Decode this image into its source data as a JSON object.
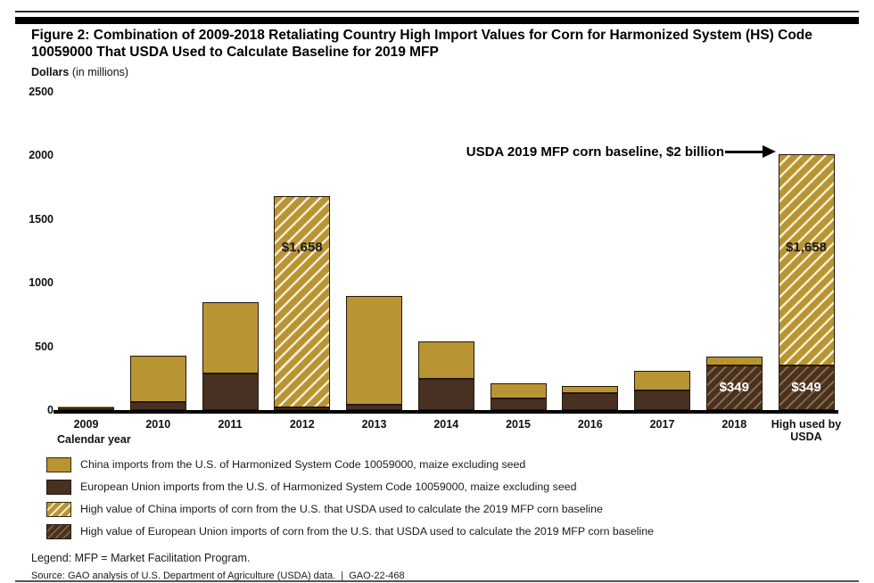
{
  "header": {
    "title_lines": [
      "Figure 2: Combination of 2009-2018 Retaliating Country High Import Values for Corn for Harmonized System (HS) Code",
      "10059000 That USDA Used to Calculate Baseline for 2019 MFP"
    ]
  },
  "chart_data": {
    "type": "bar",
    "stacked": true,
    "title": "Combination of 2009-2018 Retaliating Country High Import Values for Corn for Harmonized System (HS) Code 10059000 That USDA Used to Calculate Baseline for 2019 MFP",
    "y_axis": {
      "title_bold": "Dollars",
      "title_note": " (in millions)",
      "ticks": [
        0,
        500,
        1000,
        1500,
        2000,
        2500
      ],
      "max": 2500
    },
    "x_axis": {
      "label": "Calendar year"
    },
    "categories": [
      "2009",
      "2010",
      "2011",
      "2012",
      "2013",
      "2014",
      "2015",
      "2016",
      "2017",
      "2018",
      "High used by USDA"
    ],
    "colors": {
      "china": "#b99433",
      "eu": "#483122",
      "china_hatch_line": "#f4ebd1",
      "eu_hatch_line": "#8a6b41"
    },
    "bars": [
      {
        "category": "2009",
        "segments": [
          {
            "series": "eu",
            "value": 20
          },
          {
            "series": "china",
            "value": 5
          }
        ]
      },
      {
        "category": "2010",
        "segments": [
          {
            "series": "eu",
            "value": 65
          },
          {
            "series": "china",
            "value": 360
          }
        ]
      },
      {
        "category": "2011",
        "segments": [
          {
            "series": "eu",
            "value": 285
          },
          {
            "series": "china",
            "value": 560
          }
        ]
      },
      {
        "category": "2012",
        "segments": [
          {
            "series": "eu",
            "value": 23
          },
          {
            "series": "china_high",
            "value": 1658,
            "label": "$1,658",
            "label_at": 1270
          }
        ]
      },
      {
        "category": "2013",
        "segments": [
          {
            "series": "eu",
            "value": 40
          },
          {
            "series": "china",
            "value": 855
          }
        ]
      },
      {
        "category": "2014",
        "segments": [
          {
            "series": "eu",
            "value": 245
          },
          {
            "series": "china",
            "value": 290
          }
        ]
      },
      {
        "category": "2015",
        "segments": [
          {
            "series": "eu",
            "value": 90
          },
          {
            "series": "china",
            "value": 120
          }
        ]
      },
      {
        "category": "2016",
        "segments": [
          {
            "series": "eu",
            "value": 133
          },
          {
            "series": "china",
            "value": 53
          }
        ]
      },
      {
        "category": "2017",
        "segments": [
          {
            "series": "eu",
            "value": 155
          },
          {
            "series": "china",
            "value": 155
          }
        ]
      },
      {
        "category": "2018",
        "segments": [
          {
            "series": "eu_high",
            "value": 349,
            "label": "$349"
          },
          {
            "series": "china",
            "value": 70
          }
        ]
      },
      {
        "category": "High used by USDA",
        "segments": [
          {
            "series": "eu_high",
            "value": 349,
            "label": "$349"
          },
          {
            "series": "china_high",
            "value": 1658,
            "label": "$1,658",
            "label_at": 1270
          }
        ]
      }
    ],
    "annotation": {
      "text": "USDA 2019 MFP corn baseline, $2 billion",
      "target_category": "High used by USDA",
      "target_value_total": 2007
    }
  },
  "legend": {
    "items": [
      {
        "series": "china",
        "label": "China imports from the U.S. of Harmonized System Code 10059000, maize excluding seed"
      },
      {
        "series": "eu",
        "label": "European Union imports from the U.S. of Harmonized System Code 10059000, maize excluding seed"
      },
      {
        "series": "china_high",
        "label": "High value of China imports of corn from the U.S. that USDA used to calculate the 2019 MFP corn baseline"
      },
      {
        "series": "eu_high",
        "label": "High value of European Union imports of corn from the U.S. that USDA used to calculate the 2019 MFP corn baseline"
      }
    ]
  },
  "footer": {
    "legend_note": "Legend: MFP = Market Facilitation Program.",
    "source": "Source: GAO analysis of U.S. Department of Agriculture (USDA) data.  |  GAO-22-468"
  }
}
